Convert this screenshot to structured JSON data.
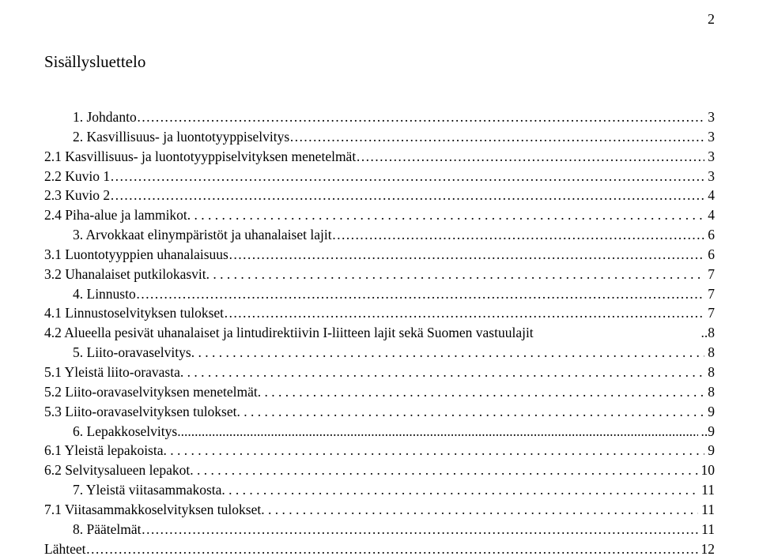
{
  "pageNumber": "2",
  "heading": "Sisällysluettelo",
  "leaderChar": "…",
  "dotChar": ".",
  "toc": [
    {
      "label": "1. Johdanto",
      "page": "3",
      "indent": "ind1",
      "leader": "ellipsis"
    },
    {
      "label": "2. Kasvillisuus- ja luontotyyppiselvitys",
      "page": "3",
      "indent": "ind1",
      "leader": "ellipsis"
    },
    {
      "label": "2.1 Kasvillisuus- ja luontotyyppiselvityksen menetelmät",
      "page": "3",
      "indent": "ind2",
      "leader": "ellipsis"
    },
    {
      "label": "2.2 Kuvio 1",
      "page": "3",
      "indent": "ind2",
      "leader": "ellipsis"
    },
    {
      "label": "2.3 Kuvio 2",
      "page": "4",
      "indent": "ind2",
      "leader": "ellipsis"
    },
    {
      "label": "2.4 Piha-alue ja lammikot",
      "page": "4",
      "indent": "ind2",
      "leader": "dots"
    },
    {
      "label": "3. Arvokkaat elinympäristöt ja uhanalaiset lajit",
      "page": "6",
      "indent": "ind1",
      "leader": "ellipsis"
    },
    {
      "label": "3.1 Luontotyyppien uhanalaisuus",
      "page": "6",
      "indent": "ind2",
      "leader": "ellipsis"
    },
    {
      "label": "3.2 Uhanalaiset putkilokasvit",
      "page": "7",
      "indent": "ind2",
      "leader": "dots"
    },
    {
      "label": "4. Linnusto",
      "page": "7",
      "indent": "ind1",
      "leader": "ellipsis"
    },
    {
      "label": "4.1 Linnustoselvityksen tulokset",
      "page": "7",
      "indent": "ind2",
      "leader": "ellipsis"
    },
    {
      "label": "4.2 Alueella pesivät uhanalaiset ja lintudirektiivin I-liitteen lajit sekä Suomen vastuulajit",
      "page": "..8",
      "indent": "ind2",
      "leader": "none"
    },
    {
      "label": "5. Liito-oravaselvitys",
      "page": "8",
      "indent": "ind1",
      "leader": "dots"
    },
    {
      "label": "5.1 Yleistä liito-oravasta",
      "page": "8",
      "indent": "ind2",
      "leader": "dots"
    },
    {
      "label": "5.2 Liito-oravaselvityksen menetelmät",
      "page": "8",
      "indent": "ind2",
      "leader": "dots"
    },
    {
      "label": "5.3 Liito-oravaselvityksen tulokset",
      "page": "9",
      "indent": "ind2",
      "leader": "dots"
    },
    {
      "label": "6. Lepakkoselvitys",
      "page": "..9",
      "indent": "ind1",
      "leader": "dots-tight"
    },
    {
      "label": "6.1 Yleistä lepakoista",
      "page": "9",
      "indent": "ind2",
      "leader": "dots"
    },
    {
      "label": "6.2 Selvitysalueen lepakot",
      "page": "10",
      "indent": "ind2",
      "leader": "dots"
    },
    {
      "label": "7. Yleistä viitasammakosta",
      "page": "11",
      "indent": "ind1",
      "leader": "dots"
    },
    {
      "label": "7.1 Viitasammakkoselvityksen tulokset",
      "page": "11",
      "indent": "ind2",
      "leader": "dots"
    },
    {
      "label": "8. Päätelmät",
      "page": "11",
      "indent": "ind1",
      "leader": "ellipsis"
    },
    {
      "label": "Lähteet",
      "page": "12",
      "indent": "ind0",
      "leader": "ellipsis"
    }
  ]
}
